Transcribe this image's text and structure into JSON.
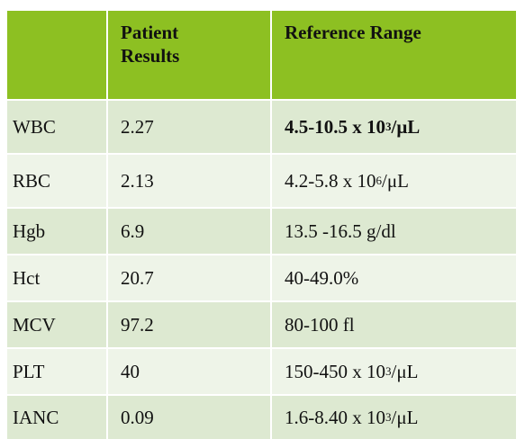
{
  "header": {
    "col1": "",
    "col2": "Patient Results",
    "col2_line1": "Patient",
    "col2_line2": "Results",
    "col3": "Reference Range"
  },
  "rows": [
    {
      "label": "WBC",
      "result": "2.27",
      "range_pre": "4.5-10.5 x 10",
      "range_sup": "3",
      "range_post": "/μL",
      "bold_range": true
    },
    {
      "label": "RBC",
      "result": "2.13",
      "range_pre": "4.2-5.8 x 10",
      "range_sup": "6",
      "range_post": "/μL",
      "bold_range": false
    },
    {
      "label": "Hgb",
      "result": "6.9",
      "range_pre": "13.5 -16.5 g/dl",
      "range_sup": "",
      "range_post": "",
      "bold_range": false
    },
    {
      "label": "Hct",
      "result": "20.7",
      "range_pre": "40-49.0%",
      "range_sup": "",
      "range_post": "",
      "bold_range": false
    },
    {
      "label": "MCV",
      "result": "97.2",
      "range_pre": "80-100 fl",
      "range_sup": "",
      "range_post": "",
      "bold_range": false
    },
    {
      "label": "PLT",
      "result": "40",
      "range_pre": "150-450 x 10",
      "range_sup": "3",
      "range_post": "/μL",
      "bold_range": false
    },
    {
      "label": "IANC",
      "result": "0.09",
      "range_pre": "1.6-8.40 x 10",
      "range_sup": "3",
      "range_post": "/μL",
      "bold_range": false
    }
  ],
  "colors": {
    "header_bg": "#8dc022",
    "row_odd_bg": "#dde9d1",
    "row_even_bg": "#eef4e8"
  }
}
